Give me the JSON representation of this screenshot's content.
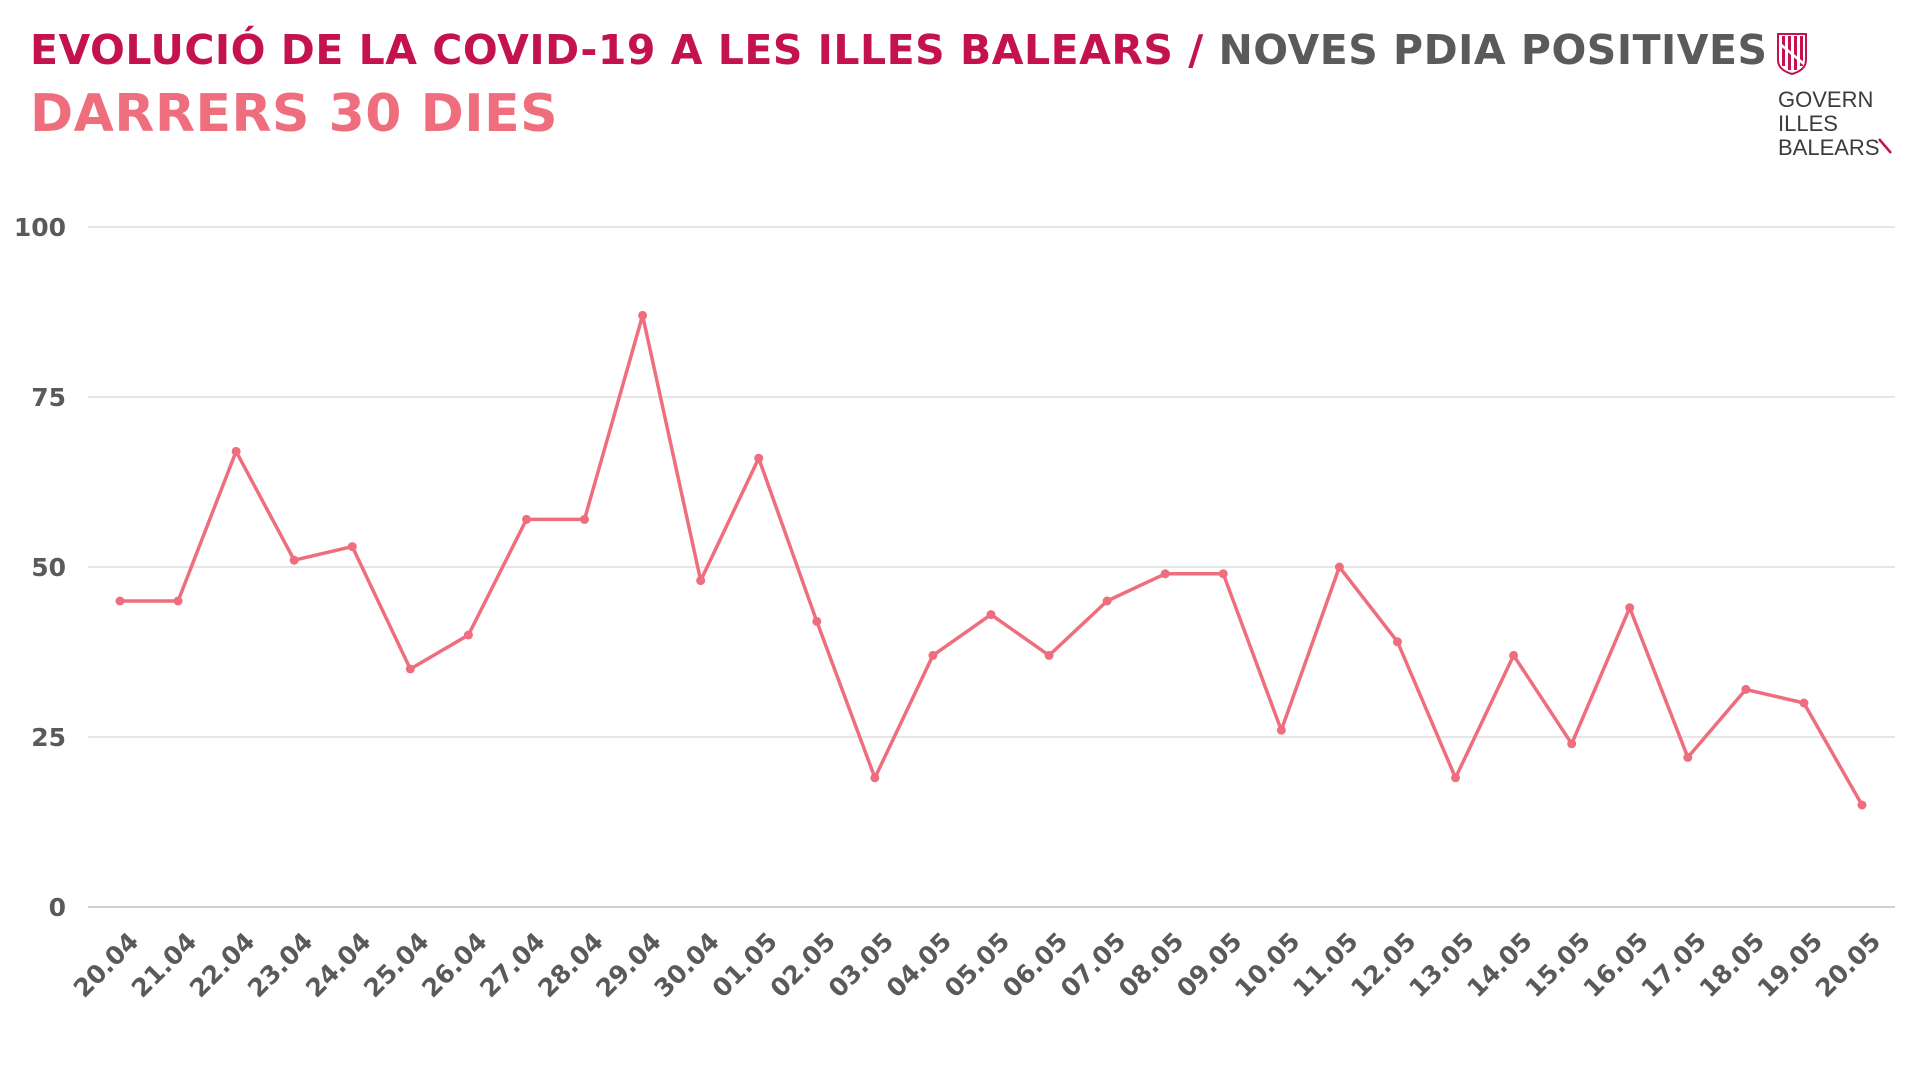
{
  "header": {
    "title_main": "EVOLUCIÓ DE LA COVID-19 A LES ILLES BALEARS",
    "title_sep": " / ",
    "title_sub": "NOVES PDIA POSITIVES",
    "subtitle": "DARRERS 30 DIES"
  },
  "logo": {
    "line1": "GOVERN",
    "line2": "ILLES",
    "line3": "BALEARS"
  },
  "colors": {
    "title": "#c4124e",
    "subtitle": "#ee6e7d",
    "line": "#ee6e7d",
    "grid": "#dddddd",
    "axis_text": "#5a5a5a"
  },
  "chart_data": {
    "type": "line",
    "title": "EVOLUCIÓ DE LA COVID-19 A LES ILLES BALEARS / NOVES PDIA POSITIVES",
    "subtitle": "DARRERS 30 DIES",
    "xlabel": "",
    "ylabel": "",
    "ylim": [
      0,
      100
    ],
    "yticks": [
      0,
      25,
      50,
      75,
      100
    ],
    "grid": true,
    "legend": "none",
    "categories": [
      "20.04",
      "21.04",
      "22.04",
      "23.04",
      "24.04",
      "25.04",
      "26.04",
      "27.04",
      "28.04",
      "29.04",
      "30.04",
      "01.05",
      "02.05",
      "03.05",
      "04.05",
      "05.05",
      "06.05",
      "07.05",
      "08.05",
      "09.05",
      "10.05",
      "11.05",
      "12.05",
      "13.05",
      "14.05",
      "15.05",
      "16.05",
      "17.05",
      "18.05",
      "19.05",
      "20.05"
    ],
    "values": [
      45,
      45,
      67,
      51,
      53,
      35,
      40,
      57,
      57,
      87,
      48,
      66,
      42,
      19,
      37,
      43,
      37,
      45,
      49,
      49,
      26,
      50,
      39,
      19,
      37,
      24,
      44,
      22,
      32,
      30,
      15
    ]
  }
}
